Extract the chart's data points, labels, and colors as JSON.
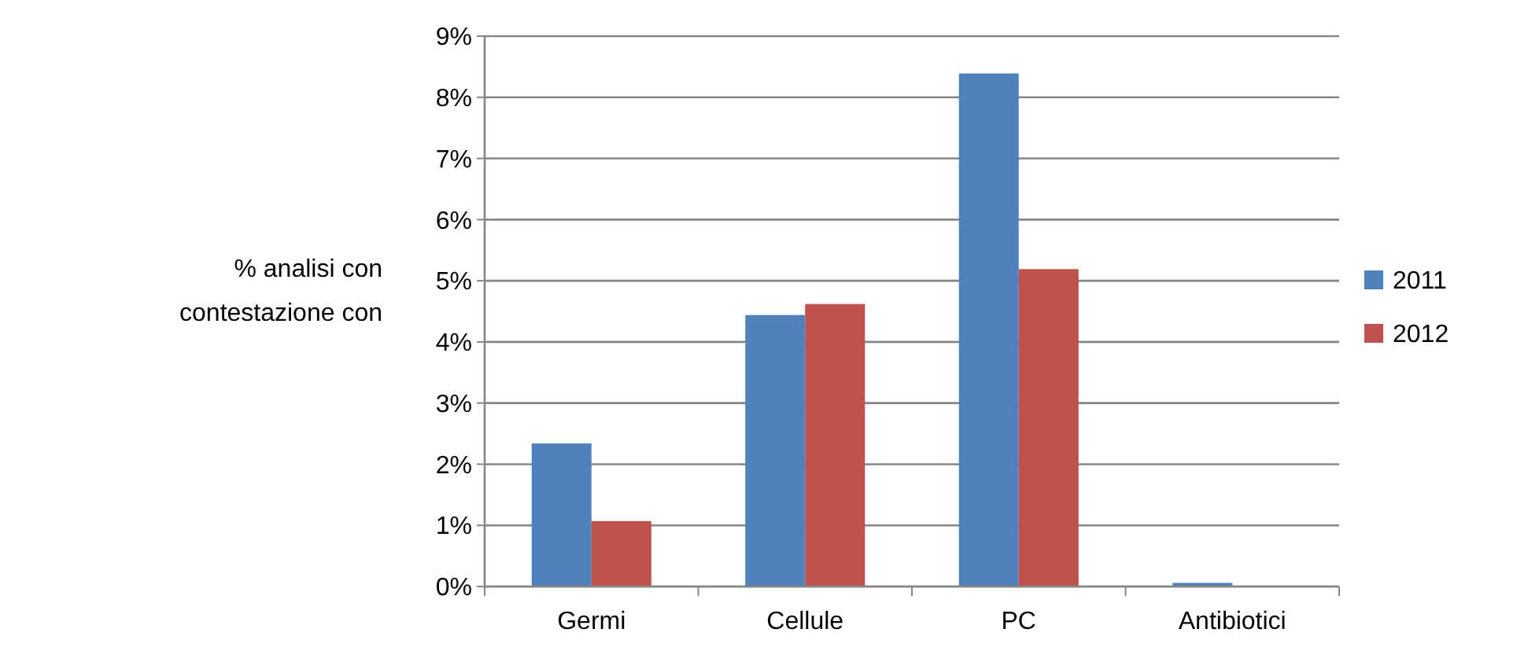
{
  "chart_data": {
    "type": "bar",
    "ylabel": "% analisi con contestazione con",
    "categories": [
      "Germi",
      "Cellule",
      "PC",
      "Antibiotici"
    ],
    "series": [
      {
        "name": "2011",
        "color": "#4f81bd",
        "values": [
          2.34,
          4.44,
          8.39,
          0.06
        ]
      },
      {
        "name": "2012",
        "color": "#c0504d",
        "values": [
          1.07,
          4.62,
          5.19,
          0
        ]
      }
    ],
    "ylim": [
      0,
      9
    ],
    "yticks": [
      {
        "value": 0,
        "label": "0%"
      },
      {
        "value": 1,
        "label": "1%"
      },
      {
        "value": 2,
        "label": "2%"
      },
      {
        "value": 3,
        "label": "3%"
      },
      {
        "value": 4,
        "label": "4%"
      },
      {
        "value": 5,
        "label": "5%"
      },
      {
        "value": 6,
        "label": "6%"
      },
      {
        "value": 7,
        "label": "7%"
      },
      {
        "value": 8,
        "label": "8%"
      },
      {
        "value": 9,
        "label": "9%"
      }
    ],
    "grid": "y",
    "legend": "right"
  }
}
